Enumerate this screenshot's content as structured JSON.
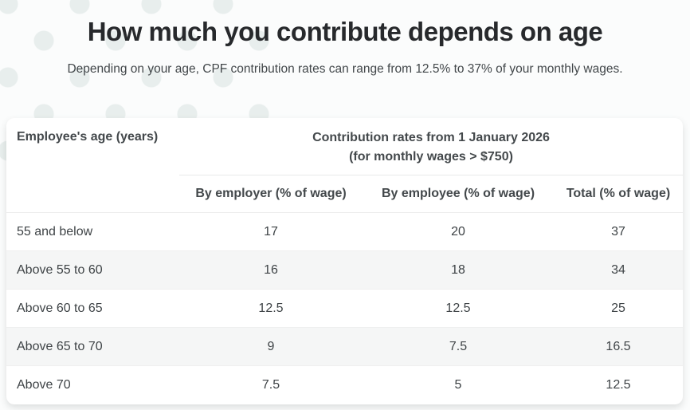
{
  "page": {
    "title": "How much you contribute depends on age",
    "subtitle": "Depending on your age, CPF contribution rates can range from 12.5% to 37% of your monthly wages."
  },
  "table": {
    "age_header": "Employee's age (years)",
    "rates_header_line1": "Contribution rates from 1 January 2026",
    "rates_header_line2": "(for monthly wages > $750)",
    "columns": [
      "By employer (% of wage)",
      "By employee (% of wage)",
      "Total (% of wage)"
    ],
    "rows": [
      {
        "age": "55 and below",
        "employer": "17",
        "employee": "20",
        "total": "37"
      },
      {
        "age": "Above 55 to 60",
        "employer": "16",
        "employee": "18",
        "total": "34"
      },
      {
        "age": "Above 60 to 65",
        "employer": "12.5",
        "employee": "12.5",
        "total": "25"
      },
      {
        "age": "Above 65 to 70",
        "employer": "9",
        "employee": "7.5",
        "total": "16.5"
      },
      {
        "age": "Above 70",
        "employer": "7.5",
        "employee": "5",
        "total": "12.5"
      }
    ]
  },
  "colors": {
    "dot_pattern": "#e8eeed",
    "row_alternate": "#f5f6f6",
    "title_text": "#27292c",
    "body_text": "#3e4346",
    "row_border": "#ececec"
  }
}
